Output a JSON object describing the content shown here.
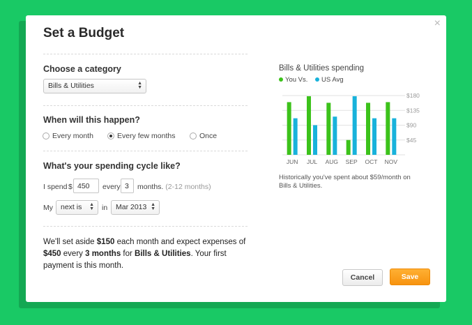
{
  "modal": {
    "title": "Set a Budget",
    "close_glyph": "×"
  },
  "category": {
    "label": "Choose a category",
    "selected": "Bills & Utilities"
  },
  "frequency": {
    "label": "When will this happen?",
    "options": [
      {
        "label": "Every month",
        "checked": false
      },
      {
        "label": "Every few months",
        "checked": true
      },
      {
        "label": "Once",
        "checked": false
      }
    ]
  },
  "cycle": {
    "label": "What's your spending cycle like?",
    "i_spend": "I spend",
    "currency": "$",
    "amount": "450",
    "every": "every",
    "months_value": "3",
    "months_word": "months.",
    "months_hint": "(2-12 months)",
    "my": "My",
    "next_select": "next is",
    "in": "in",
    "date_select": "Mar 2013"
  },
  "summary": {
    "t1": "We'll set aside ",
    "b1": "$150",
    "t2": " each month and expect expenses of ",
    "b2": "$450",
    "t3": " every ",
    "b3": "3 months",
    "t4": " for ",
    "b4": "Bills & Utilities",
    "t5": ". Your first payment is this month."
  },
  "chart_data": {
    "type": "bar",
    "title": "Bills & Utilities spending",
    "categories": [
      "JUN",
      "JUL",
      "AUG",
      "SEP",
      "OCT",
      "NOV"
    ],
    "series": [
      {
        "name": "You Vs.",
        "color": "#3cc21b",
        "values": [
          160,
          178,
          158,
          45,
          158,
          160
        ]
      },
      {
        "name": "US Avg",
        "color": "#18b2db",
        "values": [
          111,
          90,
          116,
          178,
          111,
          111
        ]
      }
    ],
    "y_ticks": [
      45,
      90,
      135,
      180
    ],
    "y_tick_labels": [
      "$45",
      "$90",
      "$135",
      "$180"
    ],
    "ylim": [
      0,
      180
    ],
    "grid": true,
    "legend_position": "top-left"
  },
  "chart_caption": "Historically you've spent about $59/month on Bills & Utilities.",
  "buttons": {
    "cancel": "Cancel",
    "save": "Save"
  },
  "colors": {
    "background": "#19c965",
    "save_button": "#f7930f"
  }
}
